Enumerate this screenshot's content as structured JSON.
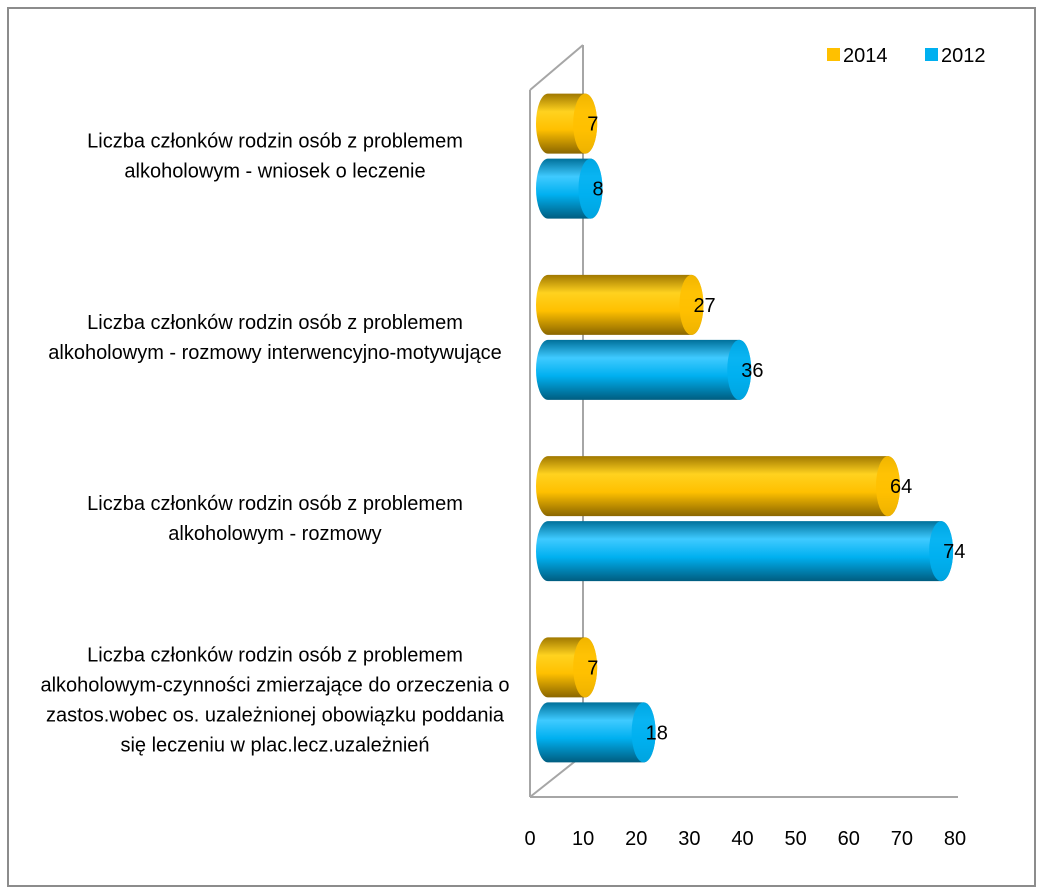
{
  "chart_data": {
    "type": "bar",
    "orientation": "horizontal",
    "style": "3d-cylinder",
    "categories": [
      "Liczba członków rodzin osób z problemem alkoholowym - wniosek o leczenie",
      "Liczba członków rodzin osób z problemem alkoholowym - rozmowy interwencyjno-motywujące",
      "Liczba członków rodzin osób z problemem alkoholowym - rozmowy",
      "Liczba członków rodzin osób z problemem alkoholowym-czynności zmierzające do orzeczenia o zastos.wobec os. uzależnionej obowiązku poddania się leczeniu w plac.lecz.uzależnień"
    ],
    "series": [
      {
        "name": "2014",
        "color": "#ffc000",
        "values": [
          7,
          27,
          64,
          7
        ]
      },
      {
        "name": "2012",
        "color": "#00b0f0",
        "values": [
          8,
          36,
          74,
          18
        ]
      }
    ],
    "xlim": [
      0,
      80
    ],
    "xticks": [
      0,
      10,
      20,
      30,
      40,
      50,
      60,
      70,
      80
    ],
    "legend": "top-right",
    "grid": false
  }
}
